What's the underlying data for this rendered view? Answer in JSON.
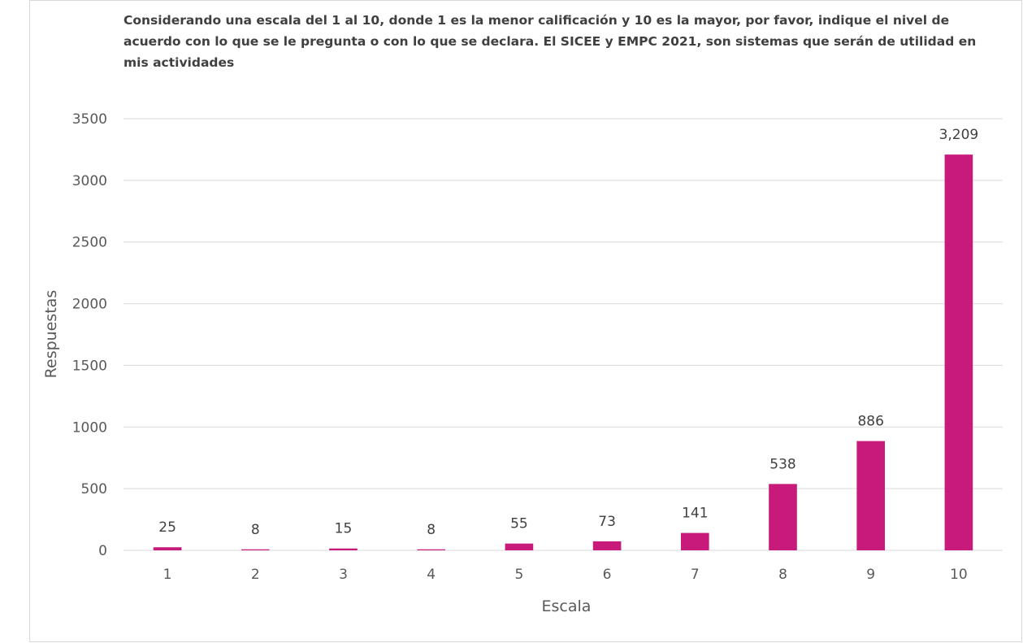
{
  "chart_data": {
    "type": "bar",
    "title": "Considerando una escala del 1 al 10, donde 1 es la menor calificación y 10 es la mayor, por favor, indique el nivel de acuerdo con lo que se le pregunta o con lo que se declara. El SICEE y EMPC 2021, son sistemas que serán de utilidad en mis actividades",
    "xlabel": "Escala",
    "ylabel": "Respuestas",
    "categories": [
      "1",
      "2",
      "3",
      "4",
      "5",
      "6",
      "7",
      "8",
      "9",
      "10"
    ],
    "values": [
      25,
      8,
      15,
      8,
      55,
      73,
      141,
      538,
      886,
      3209
    ],
    "data_labels": [
      "25",
      "8",
      "15",
      "8",
      "55",
      "73",
      "141",
      "538",
      "886",
      "3,209"
    ],
    "ylim": [
      0,
      3500
    ],
    "yticks": [
      "0",
      "500",
      "1000",
      "1500",
      "2000",
      "2500",
      "3000",
      "3500"
    ],
    "grid": true,
    "bar_color": "#C71A7B",
    "grid_color": "#D9D9D9"
  }
}
